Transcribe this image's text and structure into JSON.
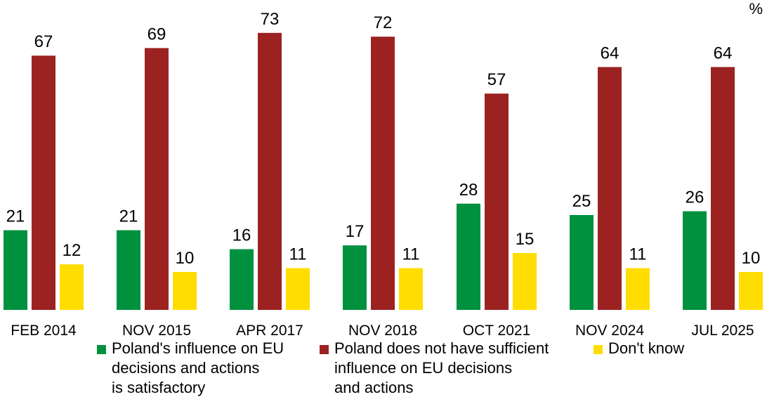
{
  "unit_label": "%",
  "colors": {
    "satisfactory": "#00913f",
    "insufficient": "#9b2221",
    "dont_know": "#ffdd00"
  },
  "chart_data": {
    "type": "bar",
    "categories": [
      "FEB 2014",
      "NOV 2015",
      "APR 2017",
      "NOV 2018",
      "OCT 2021",
      "NOV 2024",
      "JUL 2025"
    ],
    "series": [
      {
        "name": "Poland's influence on EU decisions and actions is satisfactory",
        "values": [
          21,
          21,
          16,
          17,
          28,
          25,
          26
        ]
      },
      {
        "name": "Poland does not have sufficient influence on EU decisions and actions",
        "values": [
          67,
          69,
          73,
          72,
          57,
          64,
          64
        ]
      },
      {
        "name": "Don't know",
        "values": [
          12,
          10,
          11,
          11,
          15,
          11,
          10
        ]
      }
    ],
    "ylim": [
      0,
      80
    ],
    "grid": false,
    "legend_position": "bottom"
  },
  "legend": [
    {
      "key": "satisfactory",
      "text": "Poland's influence on EU\ndecisions and actions\nis satisfactory"
    },
    {
      "key": "insufficient",
      "text": "Poland does not have sufficient\ninfluence on EU decisions\nand actions"
    },
    {
      "key": "dont_know",
      "text": "Don't know"
    }
  ]
}
